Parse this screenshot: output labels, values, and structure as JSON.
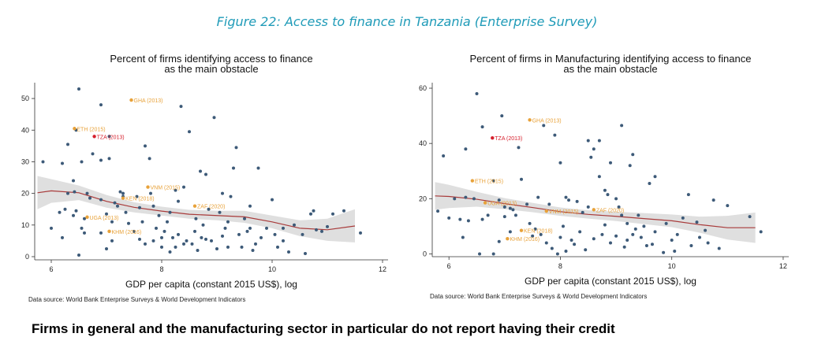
{
  "figure_title": "Figure 22: Access to finance in Tanzania (Enterprise Survey)",
  "caption": "Firms in general and the manufacturing sector in particular do not report having their credit",
  "colors": {
    "point": "#3d5a78",
    "highlight": "#e8a23a",
    "tanzania": "#d6202d",
    "fit_line": "#a83a3a",
    "band": "#d9d9d9",
    "title_blue": "#1f9bb8"
  },
  "chart_data": [
    {
      "type": "scatter",
      "title_lines": [
        "Percent of firms identifying access to finance",
        "as the main obstacle"
      ],
      "xlabel": "GDP per capita (constant 2015 US$), log",
      "ylabel": "",
      "xlim": [
        5.7,
        12.1
      ],
      "ylim": [
        -1,
        55
      ],
      "xticks": [
        6,
        8,
        10,
        12
      ],
      "yticks": [
        0,
        10,
        20,
        30,
        40,
        50
      ],
      "grid": false,
      "source": "Data source: World Bank Enterprise Surveys & World Development Indicators",
      "labeled_points": [
        {
          "label": "GHA (2013)",
          "x": 7.45,
          "y": 49.5,
          "kind": "highlight"
        },
        {
          "label": "ETH (2015)",
          "x": 6.42,
          "y": 40.5,
          "kind": "highlight"
        },
        {
          "label": "TZA (2013)",
          "x": 6.78,
          "y": 38.0,
          "kind": "tanzania"
        },
        {
          "label": "VNM (2015)",
          "x": 7.75,
          "y": 22.0,
          "kind": "highlight"
        },
        {
          "label": "KEN (2018)",
          "x": 7.3,
          "y": 18.5,
          "kind": "highlight"
        },
        {
          "label": "ZAF (2020)",
          "x": 8.6,
          "y": 16.0,
          "kind": "highlight"
        },
        {
          "label": "UGA (2013)",
          "x": 6.65,
          "y": 12.5,
          "kind": "highlight"
        },
        {
          "label": "KHM (2016)",
          "x": 7.05,
          "y": 8.0,
          "kind": "highlight"
        }
      ],
      "fit_line": [
        [
          5.75,
          20.2
        ],
        [
          6.0,
          20.8
        ],
        [
          6.5,
          20.2
        ],
        [
          7.0,
          17.5
        ],
        [
          7.5,
          15.6
        ],
        [
          8.0,
          14.4
        ],
        [
          8.5,
          13.4
        ],
        [
          9.0,
          13.0
        ],
        [
          9.5,
          12.6
        ],
        [
          10.0,
          11.0
        ],
        [
          10.5,
          9.0
        ],
        [
          11.0,
          8.5
        ],
        [
          11.5,
          9.7
        ]
      ],
      "band_upper": [
        [
          5.75,
          25.5
        ],
        [
          6.0,
          24.5
        ],
        [
          6.5,
          22.5
        ],
        [
          7.0,
          19.5
        ],
        [
          7.5,
          17.2
        ],
        [
          8.0,
          15.8
        ],
        [
          8.5,
          14.8
        ],
        [
          9.0,
          14.5
        ],
        [
          9.5,
          14.5
        ],
        [
          10.0,
          13.0
        ],
        [
          10.5,
          11.5
        ],
        [
          11.0,
          12.0
        ],
        [
          11.5,
          15.0
        ]
      ],
      "band_lower": [
        [
          5.75,
          15.0
        ],
        [
          6.0,
          17.0
        ],
        [
          6.5,
          17.9
        ],
        [
          7.0,
          15.5
        ],
        [
          7.5,
          14.0
        ],
        [
          8.0,
          13.0
        ],
        [
          8.5,
          12.0
        ],
        [
          9.0,
          11.5
        ],
        [
          9.5,
          10.7
        ],
        [
          10.0,
          9.0
        ],
        [
          10.5,
          6.5
        ],
        [
          11.0,
          5.0
        ],
        [
          11.5,
          4.5
        ]
      ],
      "points": [
        [
          6.5,
          53
        ],
        [
          6.9,
          48
        ],
        [
          7.05,
          38
        ],
        [
          6.3,
          35.5
        ],
        [
          6.45,
          40
        ],
        [
          6.55,
          30
        ],
        [
          6.9,
          30.5
        ],
        [
          7.05,
          31
        ],
        [
          6.2,
          29.5
        ],
        [
          6.4,
          24
        ],
        [
          6.75,
          32.5
        ],
        [
          6.3,
          20
        ],
        [
          6.42,
          20.5
        ],
        [
          6.65,
          20
        ],
        [
          6.9,
          18
        ],
        [
          7.15,
          17
        ],
        [
          7.3,
          19
        ],
        [
          6.15,
          14
        ],
        [
          6.25,
          15
        ],
        [
          6.4,
          13
        ],
        [
          6.45,
          14.5
        ],
        [
          6.55,
          9
        ],
        [
          6.6,
          12
        ],
        [
          6.7,
          18.5
        ],
        [
          7.0,
          13.5
        ],
        [
          7.1,
          11
        ],
        [
          7.2,
          16
        ],
        [
          7.25,
          20.5
        ],
        [
          7.3,
          20
        ],
        [
          7.35,
          14
        ],
        [
          7.4,
          10.5
        ],
        [
          7.55,
          19
        ],
        [
          7.6,
          15.5
        ],
        [
          7.65,
          11
        ],
        [
          7.7,
          35
        ],
        [
          7.78,
          31
        ],
        [
          7.8,
          20
        ],
        [
          7.85,
          16
        ],
        [
          7.9,
          9
        ],
        [
          7.95,
          13
        ],
        [
          8.0,
          6
        ],
        [
          8.05,
          8
        ],
        [
          8.1,
          11
        ],
        [
          8.15,
          14
        ],
        [
          8.2,
          6
        ],
        [
          8.25,
          21
        ],
        [
          8.3,
          17.5
        ],
        [
          8.35,
          47.5
        ],
        [
          8.4,
          22
        ],
        [
          8.5,
          39.5
        ],
        [
          8.55,
          4
        ],
        [
          8.6,
          8
        ],
        [
          8.62,
          12
        ],
        [
          8.65,
          2
        ],
        [
          8.7,
          27
        ],
        [
          8.72,
          6
        ],
        [
          8.75,
          10
        ],
        [
          8.8,
          26
        ],
        [
          8.85,
          15
        ],
        [
          8.9,
          5
        ],
        [
          8.95,
          44
        ],
        [
          9.0,
          2.5
        ],
        [
          9.05,
          14
        ],
        [
          9.1,
          20
        ],
        [
          9.15,
          9
        ],
        [
          9.2,
          11
        ],
        [
          9.25,
          19
        ],
        [
          9.3,
          28
        ],
        [
          9.35,
          34.5
        ],
        [
          9.4,
          7
        ],
        [
          9.45,
          3
        ],
        [
          9.5,
          12
        ],
        [
          9.55,
          8
        ],
        [
          9.6,
          16
        ],
        [
          9.65,
          2
        ],
        [
          9.7,
          4
        ],
        [
          9.75,
          28
        ],
        [
          9.8,
          6
        ],
        [
          9.9,
          9
        ],
        [
          10.0,
          18
        ],
        [
          10.05,
          7
        ],
        [
          10.1,
          3
        ],
        [
          10.2,
          5
        ],
        [
          10.3,
          1.5
        ],
        [
          10.4,
          10
        ],
        [
          10.55,
          7
        ],
        [
          10.7,
          13.5
        ],
        [
          10.75,
          14.5
        ],
        [
          10.8,
          8.5
        ],
        [
          11.1,
          13.5
        ],
        [
          11.3,
          14.5
        ],
        [
          11.6,
          7.5
        ],
        [
          6.0,
          9
        ],
        [
          5.85,
          30
        ],
        [
          6.2,
          6
        ],
        [
          7.5,
          8
        ],
        [
          7.7,
          4
        ],
        [
          8.0,
          3
        ],
        [
          8.45,
          5
        ],
        [
          9.2,
          3
        ],
        [
          8.3,
          7
        ],
        [
          7.85,
          5
        ],
        [
          6.9,
          7.5
        ],
        [
          7.1,
          5
        ],
        [
          6.5,
          0.5
        ],
        [
          7.0,
          2.5
        ],
        [
          8.15,
          1.5
        ],
        [
          8.8,
          5.5
        ],
        [
          9.1,
          6.5
        ],
        [
          10.6,
          1
        ],
        [
          8.4,
          4
        ],
        [
          9.6,
          9
        ],
        [
          7.6,
          5.5
        ],
        [
          8.25,
          3
        ],
        [
          6.6,
          7.5
        ],
        [
          10.2,
          9
        ],
        [
          11.0,
          9.5
        ],
        [
          10.9,
          8
        ]
      ]
    },
    {
      "type": "scatter",
      "title_lines": [
        "Percent of firms in Manufacturing identifying access to finance",
        "as the main obstacle"
      ],
      "xlabel": "GDP per capita (constant 2015 US$), log",
      "ylabel": "",
      "xlim": [
        5.7,
        12.1
      ],
      "ylim": [
        -1,
        62
      ],
      "xticks": [
        6,
        8,
        10,
        12
      ],
      "yticks": [
        0,
        20,
        40,
        60
      ],
      "grid": false,
      "source": "Data source: World Bank Enterprise Surveys & World Development Indicators",
      "labeled_points": [
        {
          "label": "GHA (2013)",
          "x": 7.45,
          "y": 48.5,
          "kind": "highlight"
        },
        {
          "label": "TZA (2013)",
          "x": 6.78,
          "y": 42.0,
          "kind": "tanzania"
        },
        {
          "label": "ETH (2015)",
          "x": 6.42,
          "y": 26.5,
          "kind": "highlight"
        },
        {
          "label": "UGA (2013)",
          "x": 6.65,
          "y": 18.5,
          "kind": "highlight"
        },
        {
          "label": "VNM (2015)",
          "x": 7.75,
          "y": 15.5,
          "kind": "highlight"
        },
        {
          "label": "ZAF (2020)",
          "x": 8.6,
          "y": 16.0,
          "kind": "highlight"
        },
        {
          "label": "KEN (2018)",
          "x": 7.3,
          "y": 8.5,
          "kind": "highlight"
        },
        {
          "label": "KHM (2016)",
          "x": 7.05,
          "y": 5.5,
          "kind": "highlight"
        }
      ],
      "fit_line": [
        [
          5.75,
          21.0
        ],
        [
          6.0,
          20.8
        ],
        [
          6.5,
          19.8
        ],
        [
          7.0,
          18.2
        ],
        [
          7.5,
          16.8
        ],
        [
          8.0,
          15.3
        ],
        [
          8.5,
          14.3
        ],
        [
          9.0,
          13.6
        ],
        [
          9.5,
          12.8
        ],
        [
          10.0,
          12.0
        ],
        [
          10.5,
          10.6
        ],
        [
          11.0,
          9.5
        ],
        [
          11.5,
          9.5
        ]
      ],
      "band_upper": [
        [
          5.75,
          26.0
        ],
        [
          6.0,
          25.0
        ],
        [
          6.5,
          22.5
        ],
        [
          7.0,
          20.2
        ],
        [
          7.5,
          18.5
        ],
        [
          8.0,
          16.8
        ],
        [
          8.5,
          15.8
        ],
        [
          9.0,
          15.3
        ],
        [
          9.5,
          14.8
        ],
        [
          10.0,
          14.3
        ],
        [
          10.5,
          13.5
        ],
        [
          11.0,
          13.8
        ],
        [
          11.5,
          15.0
        ]
      ],
      "band_lower": [
        [
          5.75,
          16.0
        ],
        [
          6.0,
          16.6
        ],
        [
          6.5,
          17.1
        ],
        [
          7.0,
          16.2
        ],
        [
          7.5,
          15.1
        ],
        [
          8.0,
          13.8
        ],
        [
          8.5,
          12.8
        ],
        [
          9.0,
          11.9
        ],
        [
          9.5,
          10.8
        ],
        [
          10.0,
          9.7
        ],
        [
          10.5,
          7.7
        ],
        [
          11.0,
          5.2
        ],
        [
          11.5,
          4.0
        ]
      ],
      "points": [
        [
          6.5,
          58
        ],
        [
          6.95,
          50
        ],
        [
          7.7,
          46.5
        ],
        [
          6.6,
          46
        ],
        [
          9.1,
          46.5
        ],
        [
          6.3,
          38
        ],
        [
          7.25,
          38.5
        ],
        [
          7.9,
          43
        ],
        [
          8.5,
          41
        ],
        [
          8.7,
          41
        ],
        [
          8.6,
          38
        ],
        [
          8.55,
          35
        ],
        [
          9.3,
          36
        ],
        [
          8.0,
          33
        ],
        [
          8.9,
          33
        ],
        [
          9.25,
          32
        ],
        [
          7.3,
          27
        ],
        [
          8.7,
          28
        ],
        [
          9.6,
          25.5
        ],
        [
          9.7,
          28
        ],
        [
          6.3,
          20.5
        ],
        [
          6.45,
          20
        ],
        [
          6.6,
          12.5
        ],
        [
          6.7,
          14
        ],
        [
          6.9,
          19.5
        ],
        [
          7.0,
          17
        ],
        [
          7.15,
          16
        ],
        [
          7.2,
          14
        ],
        [
          7.4,
          18
        ],
        [
          7.6,
          20.5
        ],
        [
          7.8,
          18
        ],
        [
          8.1,
          20.5
        ],
        [
          8.15,
          19.5
        ],
        [
          8.3,
          19
        ],
        [
          8.4,
          15
        ],
        [
          8.5,
          17
        ],
        [
          8.8,
          23
        ],
        [
          8.85,
          21.5
        ],
        [
          9.0,
          20
        ],
        [
          9.05,
          17
        ],
        [
          9.1,
          14
        ],
        [
          9.2,
          11
        ],
        [
          9.3,
          7
        ],
        [
          9.4,
          14
        ],
        [
          9.45,
          6
        ],
        [
          9.5,
          10
        ],
        [
          9.55,
          3
        ],
        [
          9.7,
          8
        ],
        [
          9.9,
          11
        ],
        [
          10.0,
          5
        ],
        [
          10.1,
          7
        ],
        [
          10.2,
          13
        ],
        [
          10.3,
          21.5
        ],
        [
          10.45,
          11.5
        ],
        [
          10.5,
          6
        ],
        [
          10.6,
          8.5
        ],
        [
          10.65,
          4
        ],
        [
          10.75,
          19.5
        ],
        [
          10.85,
          2
        ],
        [
          11.0,
          17.5
        ],
        [
          11.4,
          13.5
        ],
        [
          11.6,
          8
        ],
        [
          5.8,
          15.5
        ],
        [
          5.9,
          35.5
        ],
        [
          6.0,
          13
        ],
        [
          6.2,
          12.5
        ],
        [
          6.25,
          6
        ],
        [
          6.35,
          12
        ],
        [
          6.55,
          0
        ],
        [
          6.8,
          0
        ],
        [
          6.9,
          4.5
        ],
        [
          7.0,
          13.5
        ],
        [
          7.1,
          8
        ],
        [
          7.45,
          11
        ],
        [
          7.55,
          9
        ],
        [
          7.65,
          7
        ],
        [
          7.75,
          4
        ],
        [
          7.85,
          2
        ],
        [
          7.95,
          0
        ],
        [
          8.0,
          6
        ],
        [
          8.05,
          10
        ],
        [
          8.2,
          5
        ],
        [
          8.25,
          3.5
        ],
        [
          8.35,
          8
        ],
        [
          8.45,
          1.5
        ],
        [
          8.6,
          5.5
        ],
        [
          8.75,
          7
        ],
        [
          8.8,
          10.5
        ],
        [
          8.9,
          4
        ],
        [
          9.0,
          6.5
        ],
        [
          9.15,
          2.5
        ],
        [
          9.35,
          9
        ],
        [
          9.65,
          3.5
        ],
        [
          9.85,
          0.5
        ],
        [
          10.05,
          1
        ],
        [
          10.35,
          3
        ],
        [
          6.8,
          26.5
        ],
        [
          7.1,
          16.5
        ],
        [
          7.5,
          6.5
        ],
        [
          8.1,
          1
        ],
        [
          9.2,
          5
        ],
        [
          6.1,
          20
        ]
      ]
    }
  ]
}
